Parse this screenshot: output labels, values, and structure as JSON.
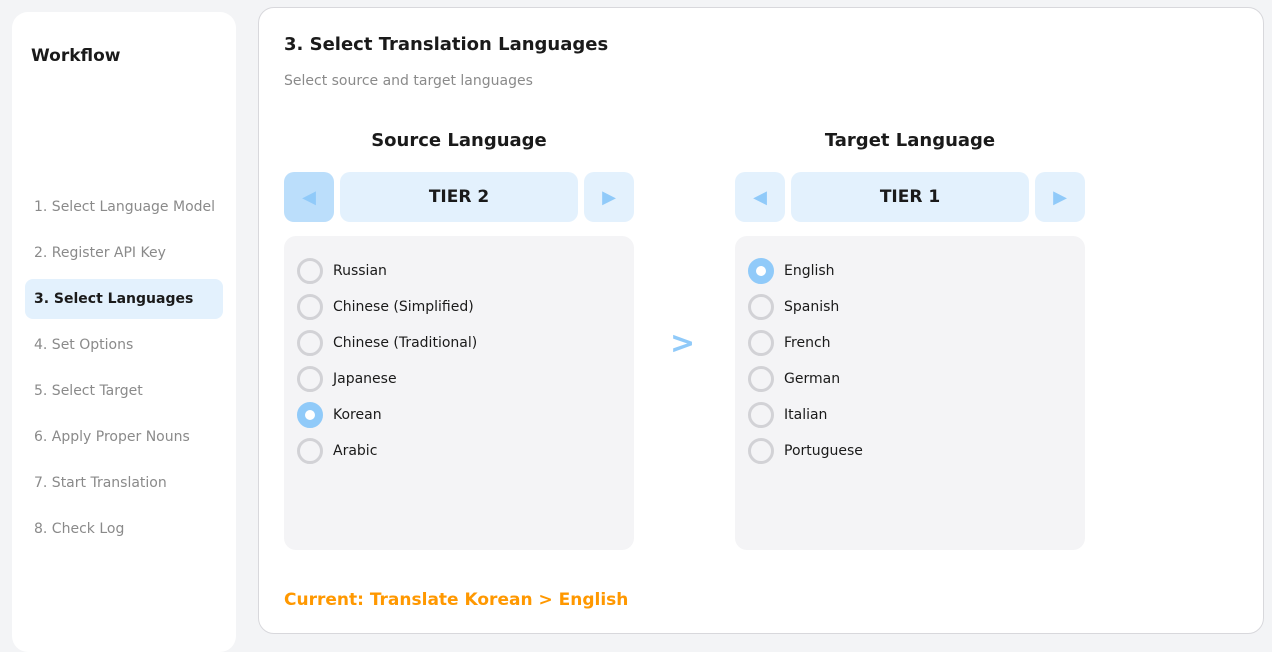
{
  "sidebar": {
    "title": "Workflow",
    "items": [
      {
        "label": "1. Select Language Model",
        "active": false
      },
      {
        "label": "2. Register API Key",
        "active": false
      },
      {
        "label": "3. Select Languages",
        "active": true
      },
      {
        "label": "4. Set Options",
        "active": false
      },
      {
        "label": "5. Select Target",
        "active": false
      },
      {
        "label": "6. Apply Proper Nouns",
        "active": false
      },
      {
        "label": "7. Start Translation",
        "active": false
      },
      {
        "label": "8. Check Log",
        "active": false
      }
    ]
  },
  "main": {
    "title": "3. Select Translation Languages",
    "subtitle": "Select source and target languages",
    "source": {
      "title": "Source Language",
      "tier": "TIER 2",
      "options": [
        "Russian",
        "Chinese (Simplified)",
        "Chinese (Traditional)",
        "Japanese",
        "Korean",
        "Arabic"
      ],
      "selected": "Korean"
    },
    "separator": ">",
    "target": {
      "title": "Target Language",
      "tier": "TIER 1",
      "options": [
        "English",
        "Spanish",
        "French",
        "German",
        "Italian",
        "Portuguese"
      ],
      "selected": "English"
    },
    "current": "Current: Translate Korean > English"
  },
  "icons": {
    "prev": "triangle-left-icon",
    "next": "triangle-right-icon"
  },
  "colors": {
    "accent": "#90caf9",
    "active_bg": "#e3f1fd",
    "status": "#ff9800"
  }
}
